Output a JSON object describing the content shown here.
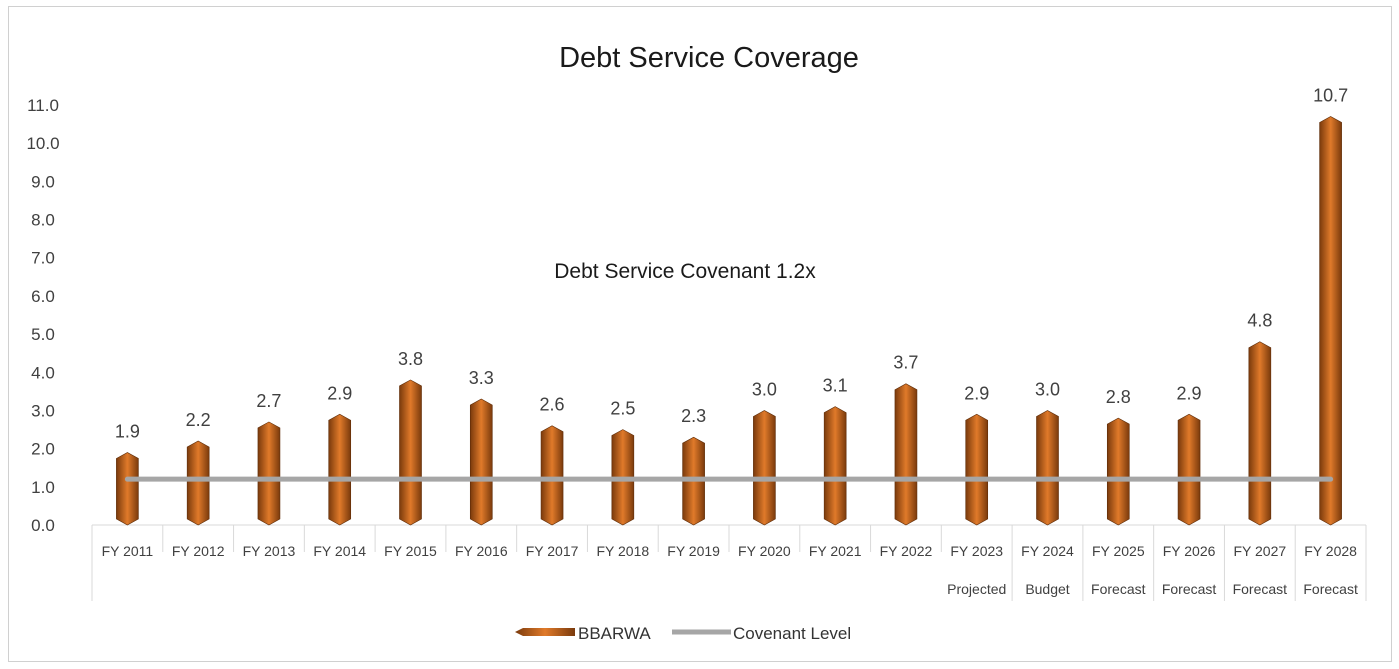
{
  "chart_data": {
    "type": "bar",
    "title": "Debt Service Coverage",
    "annotation": "Debt Service Covenant 1.2x",
    "categories": [
      "FY 2011",
      "FY 2012",
      "FY 2013",
      "FY 2014",
      "FY 2015",
      "FY 2016",
      "FY 2017",
      "FY 2018",
      "FY 2019",
      "FY 2020",
      "FY 2021",
      "FY 2022",
      "FY 2023",
      "FY 2024",
      "FY 2025",
      "FY 2026",
      "FY 2027",
      "FY 2028"
    ],
    "subcategories": [
      "",
      "",
      "",
      "",
      "",
      "",
      "",
      "",
      "",
      "",
      "",
      "",
      "Projected",
      "Budget",
      "Forecast",
      "Forecast",
      "Forecast",
      "Forecast"
    ],
    "series": [
      {
        "name": "BBARWA",
        "type": "bar",
        "color": "#c8631b",
        "values": [
          1.9,
          2.2,
          2.7,
          2.9,
          3.8,
          3.3,
          2.6,
          2.5,
          2.3,
          3.0,
          3.1,
          3.7,
          2.9,
          3.0,
          2.8,
          2.9,
          4.8,
          10.7
        ]
      },
      {
        "name": "Covenant Level",
        "type": "line",
        "color": "#a6a6a6",
        "values": [
          1.2,
          1.2,
          1.2,
          1.2,
          1.2,
          1.2,
          1.2,
          1.2,
          1.2,
          1.2,
          1.2,
          1.2,
          1.2,
          1.2,
          1.2,
          1.2,
          1.2,
          1.2
        ]
      }
    ],
    "data_labels": [
      "1.9",
      "2.2",
      "2.7",
      "2.9",
      "3.8",
      "3.3",
      "2.6",
      "2.5",
      "2.3",
      "3.0",
      "3.1",
      "3.7",
      "2.9",
      "3.0",
      "2.8",
      "2.9",
      "4.8",
      "10.7"
    ],
    "yticks": [
      "0.0",
      "1.0",
      "2.0",
      "3.0",
      "4.0",
      "5.0",
      "6.0",
      "7.0",
      "8.0",
      "9.0",
      "10.0",
      "11.0"
    ],
    "ylim": [
      0,
      11
    ],
    "grid": false,
    "legend_position": "bottom"
  }
}
